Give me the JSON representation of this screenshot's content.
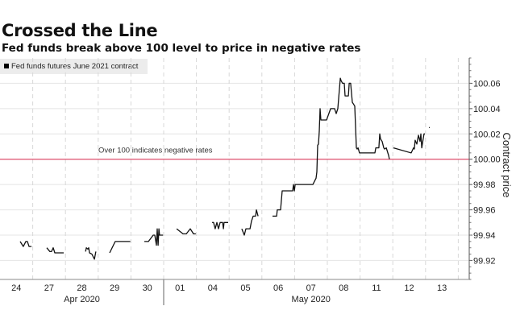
{
  "chart_data": {
    "type": "line",
    "title": "Crossed the Line",
    "subtitle": "Fed funds break above 100 level to price in negative rates",
    "legend": {
      "position": "top-left",
      "entries": [
        "Fed funds futures June 2021 contract"
      ]
    },
    "ylabel": "Contract price",
    "ylim": [
      99.905,
      100.08
    ],
    "yticks": [
      "99.92",
      "99.94",
      "99.96",
      "99.98",
      "100.00",
      "100.02",
      "100.04",
      "100.06"
    ],
    "ytick_values": [
      99.92,
      99.94,
      99.96,
      99.98,
      100.0,
      100.02,
      100.04,
      100.06
    ],
    "y_axis_side": "right",
    "x_days": [
      "24",
      "27",
      "28",
      "29",
      "30",
      "01",
      "04",
      "05",
      "06",
      "07",
      "08",
      "11",
      "12",
      "13"
    ],
    "x_months": [
      {
        "label": "Apr 2020",
        "days": [
          "24",
          "27",
          "28",
          "29",
          "30"
        ]
      },
      {
        "label": "May 2020",
        "days": [
          "01",
          "04",
          "05",
          "06",
          "07",
          "08",
          "11",
          "12",
          "13"
        ]
      }
    ],
    "grid": true,
    "reference_line": {
      "value": 100.0,
      "label": "Over 100 indicates negative rates",
      "color": "#e0506e"
    },
    "line_color": "#111111",
    "series": [
      {
        "name": "Fed funds futures June 2021 contract",
        "segments": [
          [
            [
              "24",
              14.8,
              99.935
            ],
            [
              "24",
              17.1,
              99.931
            ],
            [
              "24",
              18.9,
              99.935
            ],
            [
              "24",
              20.1,
              99.935
            ],
            [
              "24",
              21.3,
              99.931
            ],
            [
              "24",
              23.1,
              99.931
            ]
          ],
          [
            [
              "27",
              10.3,
              99.93
            ],
            [
              "27",
              12.6,
              99.927
            ],
            [
              "27",
              13.8,
              99.927
            ],
            [
              "27",
              15.0,
              99.93
            ],
            [
              "27",
              16.2,
              99.926
            ],
            [
              "27",
              22.7,
              99.926
            ]
          ],
          [
            [
              "28",
              14.7,
              99.927
            ],
            [
              "28",
              15.3,
              99.93
            ],
            [
              "28",
              16.4,
              99.929
            ],
            [
              "28",
              17.0,
              99.93
            ],
            [
              "28",
              17.6,
              99.926
            ],
            [
              "28",
              19.4,
              99.925
            ],
            [
              "28",
              21.2,
              99.921
            ],
            [
              "28",
              22.3,
              99.927
            ]
          ],
          [
            [
              "29",
              8.4,
              99.926
            ],
            [
              "29",
              12.5,
              99.935
            ],
            [
              "29",
              23.5,
              99.935
            ]
          ],
          [
            [
              "30",
              9.8,
              99.935
            ],
            [
              "30",
              12.8,
              99.935
            ],
            [
              "30",
              16.3,
              99.94
            ],
            [
              "30",
              17.5,
              99.94
            ],
            [
              "30",
              18.7,
              99.932
            ],
            [
              "30",
              19.3,
              99.945
            ],
            [
              "30",
              19.9,
              99.932
            ],
            [
              "30",
              20.5,
              99.945
            ],
            [
              "30",
              21.0,
              99.94
            ],
            [
              "30",
              23.5,
              99.94
            ]
          ],
          [
            [
              "01",
              9.5,
              99.945
            ],
            [
              "01",
              14.2,
              99.941
            ],
            [
              "01",
              16.6,
              99.941
            ],
            [
              "01",
              19.5,
              99.945
            ],
            [
              "01",
              21.9,
              99.941
            ],
            [
              "01",
              23.6,
              99.941
            ]
          ],
          [
            [
              "04",
              11.5,
              99.95
            ],
            [
              "04",
              12.6,
              99.95
            ],
            [
              "04",
              13.8,
              99.945
            ],
            [
              "04",
              15.0,
              99.95
            ],
            [
              "04",
              16.2,
              99.945
            ],
            [
              "04",
              17.4,
              99.95
            ],
            [
              "04",
              19.2,
              99.95
            ],
            [
              "04",
              19.8,
              99.945
            ],
            [
              "04",
              20.3,
              99.95
            ],
            [
              "04",
              23.3,
              99.95
            ]
          ],
          [
            [
              "05",
              9.3,
              99.945
            ],
            [
              "05",
              11.1,
              99.94
            ],
            [
              "05",
              12.3,
              99.945
            ],
            [
              "05",
              15.3,
              99.945
            ],
            [
              "05",
              16.4,
              99.951
            ],
            [
              "05",
              17.6,
              99.955
            ],
            [
              "05",
              19.4,
              99.955
            ],
            [
              "05",
              20.0,
              99.96
            ],
            [
              "05",
              21.2,
              99.955
            ]
          ],
          [
            [
              "06",
              7.8,
              99.955
            ],
            [
              "06",
              10.8,
              99.955
            ],
            [
              "06",
              11.3,
              99.96
            ],
            [
              "06",
              13.7,
              99.96
            ],
            [
              "06",
              14.9,
              99.975
            ],
            [
              "06",
              22.6,
              99.975
            ],
            [
              "06",
              23.2,
              99.98
            ],
            [
              "06",
              23.8,
              99.975
            ],
            [
              "07",
              0.4,
              99.98
            ],
            [
              "07",
              13.4,
              99.98
            ],
            [
              "07",
              15.7,
              99.985
            ],
            [
              "07",
              16.3,
              99.99
            ],
            [
              "07",
              16.9,
              100.011
            ],
            [
              "07",
              17.5,
              100.012
            ],
            [
              "07",
              18.1,
              100.022
            ],
            [
              "07",
              18.7,
              100.04
            ],
            [
              "07",
              19.3,
              100.031
            ],
            [
              "07",
              23.4,
              100.031
            ],
            [
              "08",
              2.4,
              100.04
            ],
            [
              "08",
              5.3,
              100.04
            ],
            [
              "08",
              6.5,
              100.036
            ],
            [
              "08",
              7.7,
              100.04
            ],
            [
              "08",
              9.5,
              100.064
            ],
            [
              "08",
              10.1,
              100.062
            ],
            [
              "08",
              11.2,
              100.06
            ],
            [
              "08",
              12.4,
              100.06
            ],
            [
              "08",
              13.0,
              100.05
            ],
            [
              "08",
              15.4,
              100.05
            ],
            [
              "08",
              16.0,
              100.06
            ],
            [
              "08",
              17.1,
              100.06
            ],
            [
              "08",
              18.3,
              100.045
            ],
            [
              "08",
              20.1,
              100.042
            ],
            [
              "08",
              21.3,
              100.009
            ],
            [
              "08",
              21.9,
              100.008
            ],
            [
              "08",
              22.5,
              100.009
            ],
            [
              "08",
              23.6,
              100.005
            ],
            [
              "11",
              10.9,
              100.005
            ],
            [
              "11",
              11.5,
              100.009
            ],
            [
              "11",
              13.8,
              100.009
            ],
            [
              "11",
              14.4,
              100.02
            ],
            [
              "11",
              15.0,
              100.016
            ],
            [
              "11",
              16.2,
              100.014
            ],
            [
              "11",
              17.4,
              100.009
            ],
            [
              "11",
              18.0,
              100.008
            ],
            [
              "11",
              19.2,
              100.009
            ],
            [
              "11",
              20.9,
              100.003
            ],
            [
              "11",
              21.5,
              100.0
            ]
          ],
          [
            [
              "12",
              0.5,
              100.009
            ],
            [
              "12",
              13.5,
              100.005
            ],
            [
              "12",
              15.2,
              100.009
            ],
            [
              "12",
              15.8,
              100.008
            ],
            [
              "12",
              16.4,
              100.015
            ],
            [
              "12",
              17.6,
              100.012
            ],
            [
              "12",
              18.8,
              100.019
            ],
            [
              "12",
              20.0,
              100.014
            ],
            [
              "12",
              20.6,
              100.02
            ],
            [
              "12",
              21.2,
              100.009
            ],
            [
              "12",
              22.9,
              100.02
            ],
            [
              "12",
              23.5,
              100.02
            ]
          ],
          [
            [
              "13",
              2.5,
              100.025
            ],
            [
              "13",
              3.0,
              100.025
            ]
          ]
        ]
      }
    ]
  }
}
